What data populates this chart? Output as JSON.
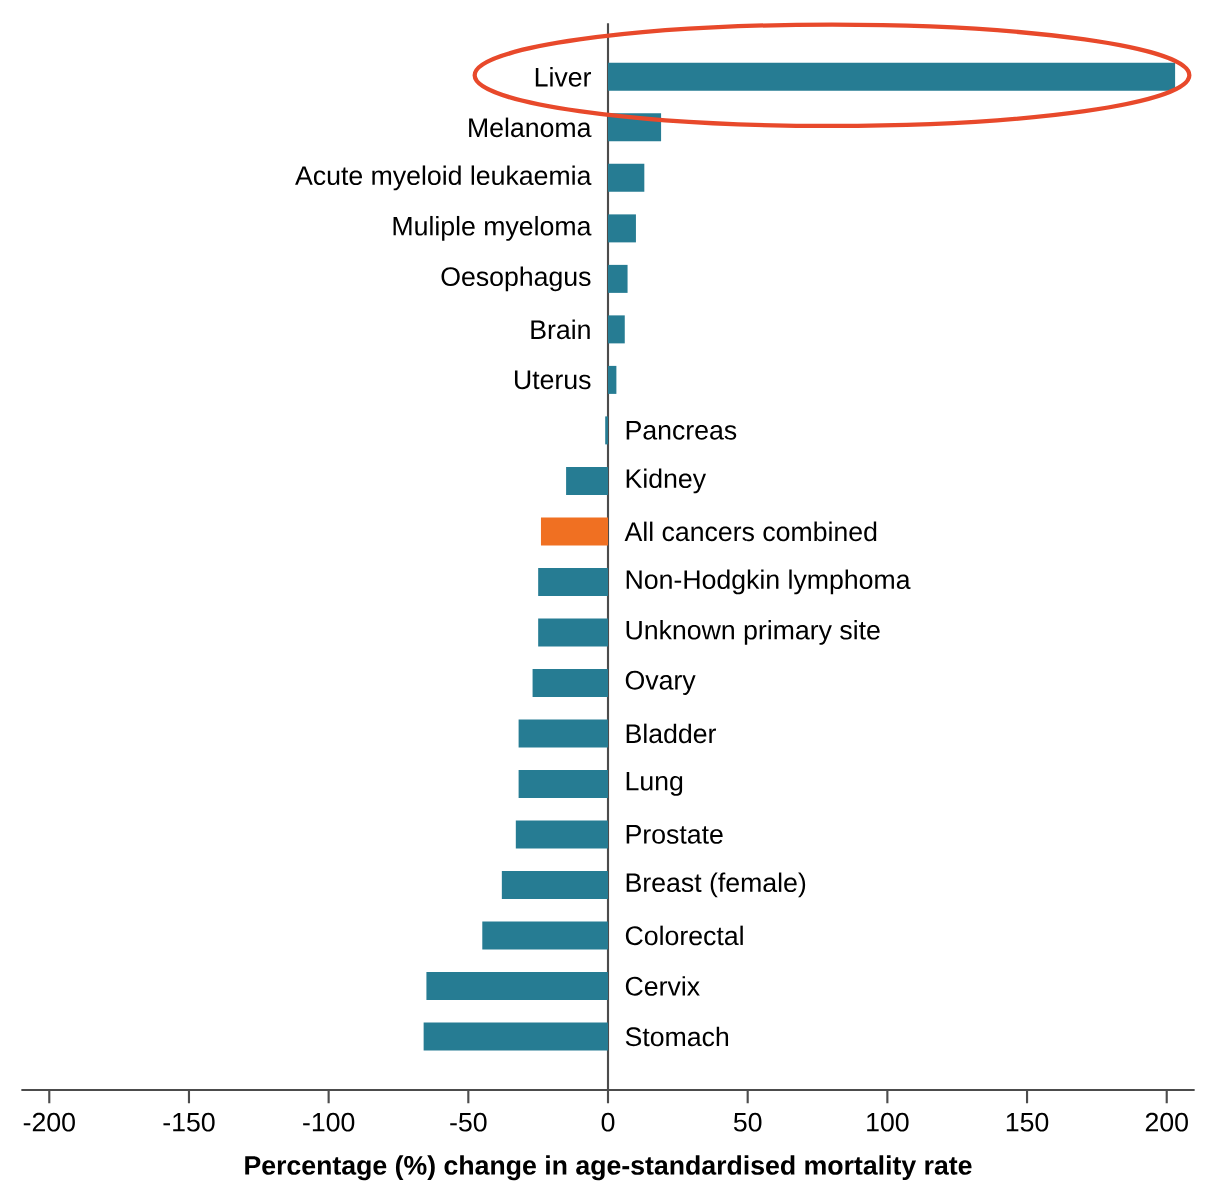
{
  "chart_data": {
    "type": "bar",
    "orientation": "horizontal",
    "xlabel": "Percentage (%) change in age-standardised mortality rate",
    "categories": [
      "Liver",
      "Melanoma",
      "Acute myeloid leukaemia",
      "Muliple myeloma",
      "Oesophagus",
      "Brain",
      "Uterus",
      "Pancreas",
      "Kidney",
      "All cancers combined",
      "Non-Hodgkin lymphoma",
      "Unknown primary site",
      "Ovary",
      "Bladder",
      "Lung",
      "Prostate",
      "Breast (female)",
      "Colorectal",
      "Cervix",
      "Stomach"
    ],
    "values": [
      203,
      19,
      13,
      10,
      7,
      6,
      3,
      -1,
      -15,
      -24,
      -25,
      -25,
      -27,
      -32,
      -32,
      -33,
      -38,
      -45,
      -65,
      -66
    ],
    "colors": [
      "#267c93",
      "#267c93",
      "#267c93",
      "#267c93",
      "#267c93",
      "#267c93",
      "#267c93",
      "#267c93",
      "#267c93",
      "#f07022",
      "#267c93",
      "#267c93",
      "#267c93",
      "#267c93",
      "#267c93",
      "#267c93",
      "#267c93",
      "#267c93",
      "#267c93",
      "#267c93"
    ],
    "xlim": [
      -210,
      210
    ],
    "xticks": [
      -200,
      -150,
      -100,
      -50,
      0,
      50,
      100,
      150,
      200
    ],
    "grid": false
  }
}
